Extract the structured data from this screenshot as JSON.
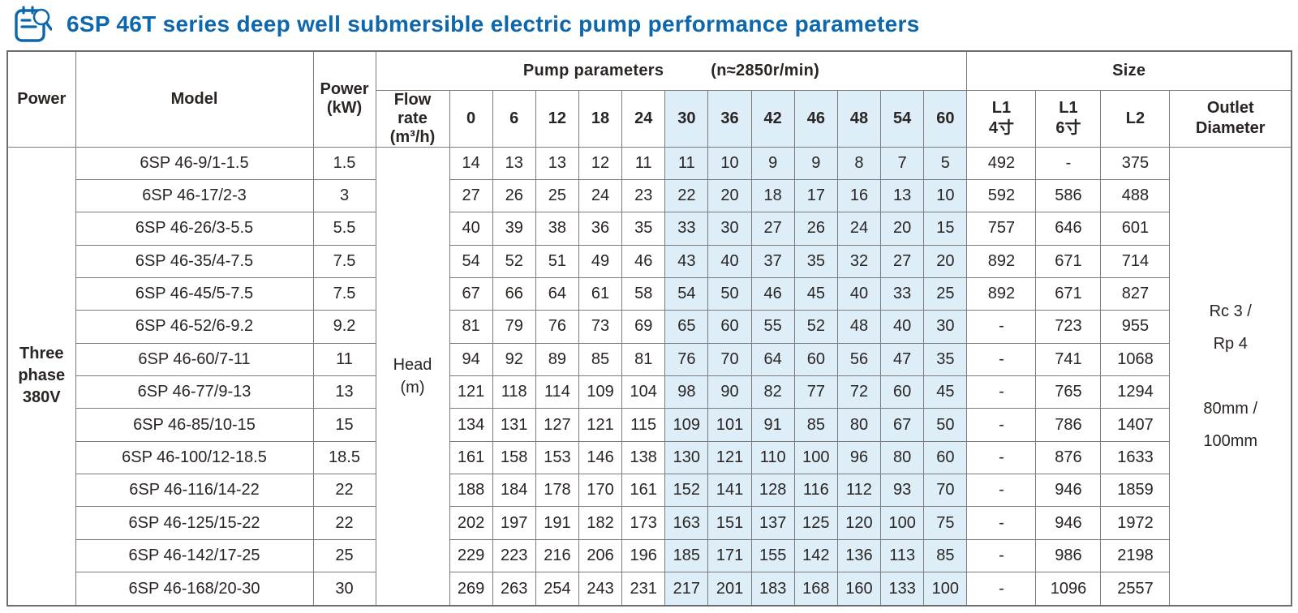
{
  "title": {
    "text": "6SP 46T series deep well submersible electric pump performance parameters",
    "icon": "document-magnifier-icon",
    "color": "#0c67ac"
  },
  "colors": {
    "highlight_column_bg": "#ddeef8",
    "border": "#7b7b7b",
    "text": "#2a2422"
  },
  "table": {
    "headers": {
      "power": "Power",
      "model": "Model",
      "power_kw": "Power\n(kW)",
      "pump_parameters": "Pump parameters",
      "speed": "(n≈2850r/min)",
      "flow_rate": "Flow rate\n(m³/h)",
      "flow_values": [
        "0",
        "6",
        "12",
        "18",
        "24",
        "30",
        "36",
        "42",
        "46",
        "48",
        "54",
        "60"
      ],
      "size": "Size",
      "l1_4": "L1\n4寸",
      "l1_6": "L1\n6寸",
      "l2": "L2",
      "outlet": "Outlet\nDiameter"
    },
    "highlight_from_index": 5,
    "power_group": "Three\nphase\n380V",
    "head_label": "Head\n(m)",
    "outlet_value": "Rc 3 /\nRp 4\n\n80mm /\n100mm",
    "rows": [
      {
        "model": "6SP 46-9/1-1.5",
        "kw": "1.5",
        "head": [
          "14",
          "13",
          "13",
          "12",
          "11",
          "11",
          "10",
          "9",
          "9",
          "8",
          "7",
          "5"
        ],
        "l1_4": "492",
        "l1_6": "-",
        "l2": "375"
      },
      {
        "model": "6SP 46-17/2-3",
        "kw": "3",
        "head": [
          "27",
          "26",
          "25",
          "24",
          "23",
          "22",
          "20",
          "18",
          "17",
          "16",
          "13",
          "10"
        ],
        "l1_4": "592",
        "l1_6": "586",
        "l2": "488"
      },
      {
        "model": "6SP 46-26/3-5.5",
        "kw": "5.5",
        "head": [
          "40",
          "39",
          "38",
          "36",
          "35",
          "33",
          "30",
          "27",
          "26",
          "24",
          "20",
          "15"
        ],
        "l1_4": "757",
        "l1_6": "646",
        "l2": "601"
      },
      {
        "model": "6SP 46-35/4-7.5",
        "kw": "7.5",
        "head": [
          "54",
          "52",
          "51",
          "49",
          "46",
          "43",
          "40",
          "37",
          "35",
          "32",
          "27",
          "20"
        ],
        "l1_4": "892",
        "l1_6": "671",
        "l2": "714"
      },
      {
        "model": "6SP 46-45/5-7.5",
        "kw": "7.5",
        "head": [
          "67",
          "66",
          "64",
          "61",
          "58",
          "54",
          "50",
          "46",
          "45",
          "40",
          "33",
          "25"
        ],
        "l1_4": "892",
        "l1_6": "671",
        "l2": "827"
      },
      {
        "model": "6SP 46-52/6-9.2",
        "kw": "9.2",
        "head": [
          "81",
          "79",
          "76",
          "73",
          "69",
          "65",
          "60",
          "55",
          "52",
          "48",
          "40",
          "30"
        ],
        "l1_4": "-",
        "l1_6": "723",
        "l2": "955"
      },
      {
        "model": "6SP 46-60/7-11",
        "kw": "11",
        "head": [
          "94",
          "92",
          "89",
          "85",
          "81",
          "76",
          "70",
          "64",
          "60",
          "56",
          "47",
          "35"
        ],
        "l1_4": "-",
        "l1_6": "741",
        "l2": "1068"
      },
      {
        "model": "6SP 46-77/9-13",
        "kw": "13",
        "head": [
          "121",
          "118",
          "114",
          "109",
          "104",
          "98",
          "90",
          "82",
          "77",
          "72",
          "60",
          "45"
        ],
        "l1_4": "-",
        "l1_6": "765",
        "l2": "1294"
      },
      {
        "model": "6SP 46-85/10-15",
        "kw": "15",
        "head": [
          "134",
          "131",
          "127",
          "121",
          "115",
          "109",
          "101",
          "91",
          "85",
          "80",
          "67",
          "50"
        ],
        "l1_4": "-",
        "l1_6": "786",
        "l2": "1407"
      },
      {
        "model": "6SP 46-100/12-18.5",
        "kw": "18.5",
        "head": [
          "161",
          "158",
          "153",
          "146",
          "138",
          "130",
          "121",
          "110",
          "100",
          "96",
          "80",
          "60"
        ],
        "l1_4": "-",
        "l1_6": "876",
        "l2": "1633"
      },
      {
        "model": "6SP 46-116/14-22",
        "kw": "22",
        "head": [
          "188",
          "184",
          "178",
          "170",
          "161",
          "152",
          "141",
          "128",
          "116",
          "112",
          "93",
          "70"
        ],
        "l1_4": "-",
        "l1_6": "946",
        "l2": "1859"
      },
      {
        "model": "6SP 46-125/15-22",
        "kw": "22",
        "head": [
          "202",
          "197",
          "191",
          "182",
          "173",
          "163",
          "151",
          "137",
          "125",
          "120",
          "100",
          "75"
        ],
        "l1_4": "-",
        "l1_6": "946",
        "l2": "1972"
      },
      {
        "model": "6SP 46-142/17-25",
        "kw": "25",
        "head": [
          "229",
          "223",
          "216",
          "206",
          "196",
          "185",
          "171",
          "155",
          "142",
          "136",
          "113",
          "85"
        ],
        "l1_4": "-",
        "l1_6": "986",
        "l2": "2198"
      },
      {
        "model": "6SP 46-168/20-30",
        "kw": "30",
        "head": [
          "269",
          "263",
          "254",
          "243",
          "231",
          "217",
          "201",
          "183",
          "168",
          "160",
          "133",
          "100"
        ],
        "l1_4": "-",
        "l1_6": "1096",
        "l2": "2557"
      }
    ]
  }
}
